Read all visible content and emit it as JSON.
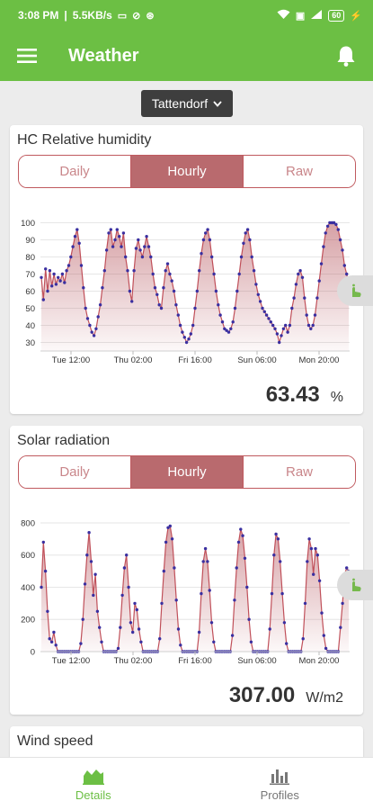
{
  "status": {
    "time": "3:08 PM",
    "speed": "5.5KB/s",
    "battery": "60"
  },
  "appbar": {
    "title": "Weather"
  },
  "location": {
    "name": "Tattendorf"
  },
  "tabs": {
    "daily": "Daily",
    "hourly": "Hourly",
    "raw": "Raw"
  },
  "cards": [
    {
      "title": "HC Relative humidity",
      "value": "63.43",
      "unit": "%",
      "chart_data": {
        "type": "area",
        "x_tick_labels": [
          "Tue 12:00",
          "Thu 02:00",
          "Fri 16:00",
          "Sun 06:00",
          "Mon 20:00"
        ],
        "y_ticks": [
          30,
          40,
          50,
          60,
          70,
          80,
          90,
          100
        ],
        "ylim": [
          25,
          105
        ],
        "values": [
          68,
          55,
          73,
          60,
          72,
          63,
          70,
          64,
          68,
          66,
          70,
          65,
          72,
          75,
          80,
          86,
          92,
          96,
          88,
          75,
          62,
          50,
          44,
          40,
          36,
          34,
          38,
          45,
          52,
          62,
          72,
          84,
          94,
          96,
          86,
          90,
          96,
          92,
          86,
          94,
          80,
          72,
          60,
          54,
          72,
          85,
          90,
          84,
          80,
          86,
          92,
          86,
          80,
          70,
          62,
          58,
          52,
          50,
          62,
          72,
          76,
          70,
          66,
          60,
          52,
          46,
          40,
          36,
          33,
          30,
          32,
          35,
          40,
          50,
          60,
          72,
          82,
          90,
          94,
          96,
          90,
          80,
          70,
          60,
          52,
          46,
          42,
          38,
          37,
          36,
          38,
          42,
          50,
          60,
          70,
          80,
          88,
          94,
          96,
          90,
          80,
          72,
          64,
          58,
          54,
          50,
          48,
          46,
          44,
          42,
          40,
          38,
          35,
          30,
          34,
          38,
          40,
          36,
          40,
          50,
          56,
          64,
          70,
          72,
          68,
          56,
          46,
          40,
          38,
          40,
          46,
          56,
          66,
          76,
          86,
          94,
          98,
          100,
          100,
          100,
          99,
          96,
          90,
          84,
          75,
          70,
          64
        ]
      }
    },
    {
      "title": "Solar radiation",
      "value": "307.00",
      "unit": "W/m2",
      "chart_data": {
        "type": "area",
        "x_tick_labels": [
          "Tue 12:00",
          "Thu 02:00",
          "Fri 16:00",
          "Sun 06:00",
          "Mon 20:00"
        ],
        "y_ticks": [
          0,
          200,
          400,
          600,
          800
        ],
        "ylim": [
          0,
          850
        ],
        "values": [
          400,
          680,
          500,
          250,
          80,
          60,
          120,
          40,
          0,
          0,
          0,
          0,
          0,
          0,
          0,
          0,
          0,
          0,
          0,
          50,
          200,
          420,
          600,
          740,
          560,
          350,
          480,
          250,
          150,
          60,
          0,
          0,
          0,
          0,
          0,
          0,
          0,
          20,
          150,
          350,
          520,
          600,
          400,
          180,
          120,
          300,
          260,
          140,
          60,
          0,
          0,
          0,
          0,
          0,
          0,
          0,
          0,
          80,
          300,
          500,
          680,
          770,
          780,
          700,
          520,
          320,
          140,
          40,
          0,
          0,
          0,
          0,
          0,
          0,
          0,
          0,
          120,
          360,
          560,
          640,
          560,
          380,
          180,
          60,
          0,
          0,
          0,
          0,
          0,
          0,
          0,
          0,
          100,
          320,
          520,
          680,
          760,
          720,
          580,
          400,
          200,
          60,
          0,
          0,
          0,
          0,
          0,
          0,
          0,
          0,
          140,
          360,
          600,
          730,
          700,
          560,
          360,
          180,
          50,
          0,
          0,
          0,
          0,
          0,
          0,
          0,
          80,
          300,
          560,
          700,
          640,
          480,
          640,
          600,
          440,
          240,
          100,
          20,
          0,
          0,
          0,
          0,
          0,
          0,
          150,
          300,
          480,
          520,
          500
        ]
      }
    },
    {
      "title": "Wind speed"
    }
  ],
  "nav": {
    "details": "Details",
    "profiles": "Profiles"
  },
  "colors": {
    "accent_green": "#6cbf44",
    "tab_accent": "#b96a6e",
    "chart_line": "#c0505a",
    "chart_point": "#3a2fa0"
  },
  "icons": [
    "hamburger-menu-icon",
    "bell-icon",
    "chevron-down-icon",
    "touch-hand-icon",
    "area-chart-icon",
    "bar-chart-icon"
  ]
}
